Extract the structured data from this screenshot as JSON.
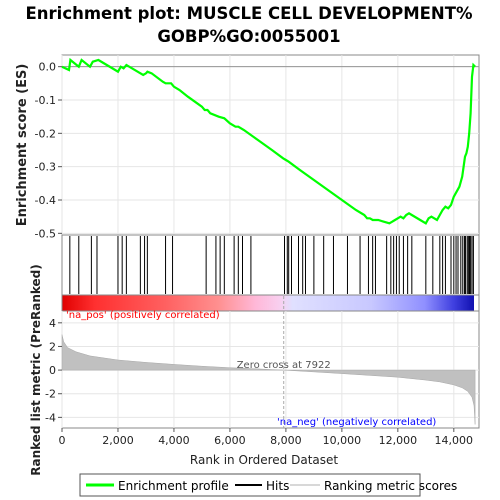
{
  "title_line1": "Enrichment plot: MUSCLE CELL DEVELOPMENT%",
  "title_line2": "GOBP%GO:0055001",
  "chart_data": {
    "type": "line",
    "x_label": "Rank in Ordered Dataset",
    "x_range": [
      0,
      14900
    ],
    "x_ticks": [
      0,
      2000,
      4000,
      6000,
      8000,
      10000,
      12000,
      14000
    ],
    "x_tick_labels": [
      "0",
      "2,000",
      "4,000",
      "6,000",
      "8,000",
      "10,000",
      "12,000",
      "14,000"
    ],
    "es_panel": {
      "ylabel": "Enrichment score (ES)",
      "ylim": [
        -0.505,
        0.035
      ],
      "yticks": [
        0.0,
        -0.1,
        -0.2,
        -0.3,
        -0.4,
        -0.5
      ],
      "ytick_labels": [
        "0.0",
        "-0.1",
        "-0.2",
        "-0.3",
        "-0.4",
        "-0.5"
      ],
      "series_name": "Enrichment profile",
      "color": "#00ff00",
      "x": [
        0,
        250,
        300,
        600,
        700,
        1000,
        1100,
        1300,
        1900,
        2000,
        2100,
        2200,
        2300,
        2800,
        2900,
        3000,
        3050,
        3200,
        3600,
        3700,
        3900,
        4000,
        4200,
        4500,
        5000,
        5100,
        5200,
        5300,
        5600,
        5800,
        6000,
        6200,
        6300,
        6500,
        7000,
        7500,
        7900,
        8000,
        8100,
        8500,
        9000,
        9500,
        10000,
        10500,
        10800,
        10900,
        11000,
        11100,
        11300,
        11500,
        11700,
        11800,
        11900,
        12000,
        12100,
        12200,
        12300,
        12400,
        12500,
        12800,
        13000,
        13100,
        13200,
        13300,
        13400,
        13500,
        13600,
        13700,
        13800,
        13900,
        14000,
        14100,
        14200,
        14300,
        14350,
        14400,
        14450,
        14500,
        14550,
        14600,
        14650,
        14700,
        14760
      ],
      "y": [
        0.0,
        -0.01,
        0.02,
        0.0,
        0.02,
        0.0,
        0.015,
        0.02,
        -0.01,
        -0.015,
        0.0,
        -0.005,
        0.005,
        -0.02,
        -0.025,
        -0.02,
        -0.015,
        -0.02,
        -0.045,
        -0.05,
        -0.05,
        -0.06,
        -0.07,
        -0.09,
        -0.12,
        -0.13,
        -0.13,
        -0.14,
        -0.15,
        -0.155,
        -0.17,
        -0.18,
        -0.18,
        -0.19,
        -0.22,
        -0.25,
        -0.275,
        -0.28,
        -0.285,
        -0.31,
        -0.34,
        -0.37,
        -0.4,
        -0.43,
        -0.445,
        -0.455,
        -0.455,
        -0.46,
        -0.46,
        -0.465,
        -0.47,
        -0.465,
        -0.46,
        -0.455,
        -0.45,
        -0.455,
        -0.445,
        -0.44,
        -0.445,
        -0.46,
        -0.47,
        -0.455,
        -0.45,
        -0.455,
        -0.46,
        -0.445,
        -0.43,
        -0.42,
        -0.425,
        -0.415,
        -0.39,
        -0.375,
        -0.36,
        -0.33,
        -0.3,
        -0.27,
        -0.26,
        -0.24,
        -0.2,
        -0.14,
        -0.03,
        0.005,
        0.0
      ],
      "zero_line": true
    },
    "hits_panel": {
      "series_name": "Hits",
      "hit_ranks": [
        280,
        600,
        1050,
        1250,
        2000,
        2150,
        2300,
        2800,
        2950,
        3050,
        3700,
        3950,
        5150,
        5500,
        5650,
        5800,
        6150,
        6300,
        6450,
        6750,
        7950,
        8050,
        8100,
        8200,
        8450,
        8600,
        8700,
        9000,
        9350,
        9700,
        10200,
        10650,
        10950,
        11100,
        11200,
        11600,
        11750,
        11850,
        11950,
        12050,
        12200,
        12350,
        12500,
        13000,
        13250,
        13500,
        13600,
        13700,
        13900,
        14000,
        14080,
        14150,
        14250,
        14320,
        14380,
        14420,
        14480,
        14520,
        14560,
        14600,
        14650,
        14700
      ]
    },
    "metric_panel": {
      "ylabel": "Ranked list metric (PreRanked)",
      "series_name": "Ranking metric scores",
      "ylim": [
        -4.9,
        5.0
      ],
      "yticks": [
        4,
        2,
        0,
        -2,
        -4
      ],
      "ytick_labels": [
        "4",
        "2",
        "0",
        "-2",
        "-4"
      ],
      "x": [
        0,
        60,
        200,
        500,
        1000,
        2000,
        3000,
        4000,
        5000,
        6000,
        7000,
        7922,
        9000,
        10000,
        11000,
        12000,
        13000,
        13500,
        14000,
        14300,
        14500,
        14650,
        14720,
        14760
      ],
      "values": [
        3.0,
        2.4,
        1.9,
        1.55,
        1.2,
        0.85,
        0.65,
        0.48,
        0.33,
        0.2,
        0.1,
        0.0,
        -0.15,
        -0.3,
        -0.45,
        -0.6,
        -0.85,
        -1.0,
        -1.25,
        -1.5,
        -1.8,
        -2.3,
        -3.0,
        -4.6
      ],
      "zero_cross_label": "Zero cross at 7922",
      "zero_cross_rank": 7922,
      "pos_label": "'na_pos' (positively correlated)",
      "neg_label": "'na_neg' (negatively correlated)"
    },
    "legend": {
      "placement": "bottom",
      "entries": [
        "Enrichment profile",
        "Hits",
        "Ranking metric scores"
      ]
    },
    "colors": {
      "enrichment": "#00ff00",
      "hits": "#000000",
      "metric_fill": "#c0c0c0",
      "pos_text": "#ff0000",
      "neg_text": "#0000ff",
      "zero_text": "#555555"
    }
  }
}
